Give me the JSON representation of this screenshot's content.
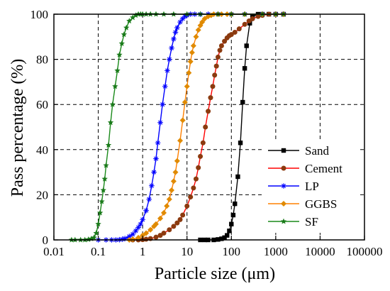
{
  "chart_data": {
    "type": "line",
    "xlabel": "Particle size (μm)",
    "ylabel": "Pass percentage (%)",
    "xscale": "log",
    "xlim": [
      0.01,
      100000
    ],
    "ylim": [
      0,
      100
    ],
    "grid": true,
    "legend_position": "bottom-right",
    "xticks": [
      0.01,
      0.1,
      1,
      10,
      100,
      1000,
      10000,
      100000
    ],
    "xtick_labels": [
      "0.01",
      "0.1",
      "1",
      "10",
      "100",
      "1000",
      "10000",
      "100000"
    ],
    "yticks": [
      0,
      20,
      40,
      60,
      80,
      100
    ],
    "ytick_labels": [
      "0",
      "20",
      "40",
      "60",
      "80",
      "100"
    ],
    "series": [
      {
        "name": "Sand",
        "color": "#000000",
        "marker": "square",
        "x": [
          20,
          25,
          30,
          40,
          50,
          60,
          70,
          80,
          90,
          100,
          110,
          120,
          140,
          160,
          180,
          200,
          220,
          260,
          300,
          400,
          500,
          700,
          1000,
          1500
        ],
        "y": [
          0,
          0,
          0,
          0,
          0.2,
          0.5,
          1,
          2,
          4,
          7,
          11,
          16,
          28,
          43,
          61,
          76,
          86,
          96,
          99,
          100,
          100,
          100,
          100,
          100
        ]
      },
      {
        "name": "Cement",
        "color": "#8b3a0f",
        "line_color": "#ff0000",
        "marker": "circle",
        "x": [
          0.6,
          0.8,
          1,
          1.2,
          1.5,
          2,
          2.5,
          3,
          4,
          5,
          6,
          7,
          8,
          10,
          12,
          14,
          16,
          18,
          20,
          23,
          26,
          30,
          34,
          38,
          42,
          46,
          50,
          55,
          60,
          70,
          80,
          90,
          100,
          120,
          150,
          200,
          250,
          300,
          400,
          500,
          700,
          1000,
          1500
        ],
        "y": [
          0,
          0,
          0.1,
          0.3,
          0.6,
          1.2,
          2,
          3,
          4.5,
          6,
          7.5,
          9,
          11,
          15,
          19,
          23,
          27,
          32,
          37,
          43,
          50,
          57,
          63,
          68,
          73,
          77,
          81,
          84,
          86,
          88,
          89.5,
          90.5,
          91,
          92,
          93.5,
          95.5,
          97,
          98,
          99,
          99.5,
          100,
          100,
          100
        ]
      },
      {
        "name": "LP",
        "color": "#0000ff",
        "marker": "asterisk",
        "x": [
          0.1,
          0.15,
          0.2,
          0.25,
          0.3,
          0.35,
          0.4,
          0.5,
          0.6,
          0.7,
          0.8,
          0.9,
          1,
          1.2,
          1.4,
          1.6,
          1.8,
          2,
          2.2,
          2.5,
          2.8,
          3.2,
          3.6,
          4,
          4.5,
          5,
          5.5,
          6,
          7,
          8,
          9,
          10,
          12,
          15,
          20,
          30,
          50,
          100,
          200,
          500,
          1000,
          1500
        ],
        "y": [
          0,
          0,
          0,
          0,
          0.1,
          0.3,
          0.6,
          1.5,
          2.5,
          4,
          5.5,
          7,
          9,
          13,
          18,
          24,
          30,
          36,
          43,
          52,
          60,
          68,
          75,
          80,
          85,
          89,
          92,
          94,
          96.5,
          98,
          99,
          99.5,
          100,
          100,
          100,
          100,
          100,
          100,
          100,
          100,
          100,
          100
        ]
      },
      {
        "name": "GGBS",
        "color": "#e08a00",
        "line_color": "#ff8000",
        "marker": "diamond",
        "x": [
          0.5,
          0.6,
          0.8,
          1,
          1.2,
          1.5,
          1.8,
          2,
          2.5,
          3,
          3.5,
          4,
          4.5,
          5,
          5.5,
          6,
          7,
          8,
          9,
          10,
          11,
          12,
          13,
          14,
          16,
          18,
          20,
          22,
          25,
          30,
          35,
          40,
          50,
          60,
          80,
          100,
          200,
          500,
          1000,
          1500
        ],
        "y": [
          0,
          0.3,
          1,
          2,
          3,
          4.5,
          6,
          7,
          9.5,
          12,
          15,
          18,
          22,
          26,
          30,
          35,
          44,
          53,
          61,
          68,
          74,
          79,
          83,
          86,
          90,
          93,
          95,
          96.5,
          98,
          99,
          99.5,
          100,
          100,
          100,
          100,
          100,
          100,
          100,
          100,
          100
        ]
      },
      {
        "name": "SF",
        "color": "#1a7a1a",
        "line_color": "#1a8a1a",
        "marker": "star",
        "x": [
          0.025,
          0.03,
          0.04,
          0.05,
          0.06,
          0.07,
          0.08,
          0.09,
          0.1,
          0.11,
          0.12,
          0.13,
          0.14,
          0.15,
          0.17,
          0.19,
          0.21,
          0.24,
          0.27,
          0.3,
          0.34,
          0.38,
          0.43,
          0.5,
          0.6,
          0.7,
          0.8,
          0.9,
          1,
          1.2,
          1.5,
          2,
          3,
          5,
          10,
          20,
          50,
          100,
          200,
          500,
          1000,
          1500
        ],
        "y": [
          0,
          0,
          0,
          0,
          0.2,
          0.5,
          1,
          3,
          7,
          12,
          17,
          22,
          27,
          33,
          42,
          52,
          60,
          68,
          75,
          82,
          87,
          91,
          94,
          97,
          98.5,
          99.5,
          100,
          100,
          100,
          100,
          100,
          100,
          100,
          100,
          100,
          100,
          100,
          100,
          100,
          100,
          100,
          100
        ]
      }
    ]
  }
}
